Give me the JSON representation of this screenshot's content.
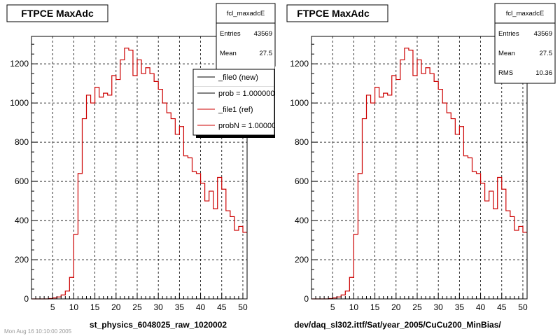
{
  "chart_data": [
    {
      "type": "step",
      "title": "FTPCE MaxAdc",
      "xlabel": "st_physics_6048025_raw_1020002",
      "ylabel": "",
      "xlim": [
        0,
        51
      ],
      "ylim": [
        0,
        1340
      ],
      "xticks": [
        5,
        10,
        15,
        20,
        25,
        30,
        35,
        40,
        45,
        50
      ],
      "yticks": [
        0,
        200,
        400,
        600,
        800,
        1000,
        1200
      ],
      "grid": true,
      "stats": {
        "name": "fcl_maxadcE",
        "entries_label": "Entries",
        "entries": "43569",
        "mean_label": "Mean",
        "mean": "27.5"
      },
      "legend": {
        "placement": "top-right",
        "entries": [
          {
            "label": "_file0 (new)",
            "color": "#000000"
          },
          {
            "label": "prob = 1.000000",
            "color": "#000000"
          },
          {
            "label": "_file1 (ref)",
            "color": "#cc0000"
          },
          {
            "label": "probN = 1.000000",
            "color": "#cc0000"
          }
        ]
      },
      "footer": "Mon Aug 16 10:10:00 2005",
      "series": [
        {
          "name": "_file1 (ref)",
          "color": "#cc0000",
          "x": [
            0,
            1,
            2,
            3,
            4,
            5,
            6,
            7,
            8,
            9,
            10,
            11,
            12,
            13,
            14,
            15,
            16,
            17,
            18,
            19,
            20,
            21,
            22,
            23,
            24,
            25,
            26,
            27,
            28,
            29,
            30,
            31,
            32,
            33,
            34,
            35,
            36,
            37,
            38,
            39,
            40,
            41,
            42,
            43,
            44,
            45,
            46,
            47,
            48,
            49,
            50
          ],
          "values": [
            0,
            0,
            0,
            0,
            2,
            5,
            10,
            20,
            40,
            110,
            330,
            640,
            920,
            1040,
            1000,
            1080,
            1030,
            1050,
            1040,
            1140,
            1120,
            1220,
            1280,
            1270,
            1140,
            1220,
            1150,
            1180,
            1150,
            1110,
            1070,
            1000,
            950,
            920,
            840,
            880,
            730,
            720,
            650,
            640,
            590,
            500,
            550,
            460,
            620,
            560,
            450,
            420,
            350,
            370,
            340
          ]
        }
      ]
    },
    {
      "type": "step",
      "title": "FTPCE MaxAdc",
      "xlabel": "dev/daq_sl302.ittf/Sat/year_2005/CuCu200_MinBias/",
      "ylabel": "",
      "xlim": [
        0,
        51
      ],
      "ylim": [
        0,
        1340
      ],
      "xticks": [
        5,
        10,
        15,
        20,
        25,
        30,
        35,
        40,
        45,
        50
      ],
      "yticks": [
        0,
        200,
        400,
        600,
        800,
        1000,
        1200
      ],
      "grid": true,
      "stats": {
        "name": "fcl_maxadcE",
        "entries_label": "Entries",
        "entries": "43569",
        "mean_label": "Mean",
        "mean": "27.5",
        "rms_label": "RMS",
        "rms": "10.36"
      },
      "series": [
        {
          "name": "",
          "color": "#cc0000",
          "x": [
            0,
            1,
            2,
            3,
            4,
            5,
            6,
            7,
            8,
            9,
            10,
            11,
            12,
            13,
            14,
            15,
            16,
            17,
            18,
            19,
            20,
            21,
            22,
            23,
            24,
            25,
            26,
            27,
            28,
            29,
            30,
            31,
            32,
            33,
            34,
            35,
            36,
            37,
            38,
            39,
            40,
            41,
            42,
            43,
            44,
            45,
            46,
            47,
            48,
            49,
            50
          ],
          "values": [
            0,
            0,
            0,
            0,
            2,
            5,
            10,
            20,
            40,
            110,
            330,
            640,
            920,
            1040,
            1000,
            1080,
            1030,
            1050,
            1040,
            1140,
            1120,
            1220,
            1280,
            1270,
            1140,
            1220,
            1150,
            1180,
            1150,
            1110,
            1070,
            1000,
            950,
            920,
            840,
            880,
            730,
            720,
            650,
            640,
            590,
            500,
            550,
            460,
            620,
            560,
            450,
            420,
            350,
            370,
            340
          ]
        }
      ]
    }
  ]
}
